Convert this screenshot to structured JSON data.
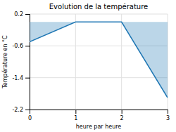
{
  "chart_data": {
    "type": "area",
    "title": "Evolution de la température",
    "ylabel": "Température en °C",
    "xlabel": "heure par heure",
    "x": [
      0,
      1,
      2,
      3
    ],
    "values": [
      -0.5,
      0.0,
      0.0,
      -1.9
    ],
    "xlim": [
      0,
      3
    ],
    "ylim": [
      -2.2,
      0.2
    ],
    "xticks": [
      0,
      1,
      2,
      3
    ],
    "yticks": [
      0.2,
      -0.6,
      -1.4,
      -2.2
    ],
    "grid": true
  }
}
